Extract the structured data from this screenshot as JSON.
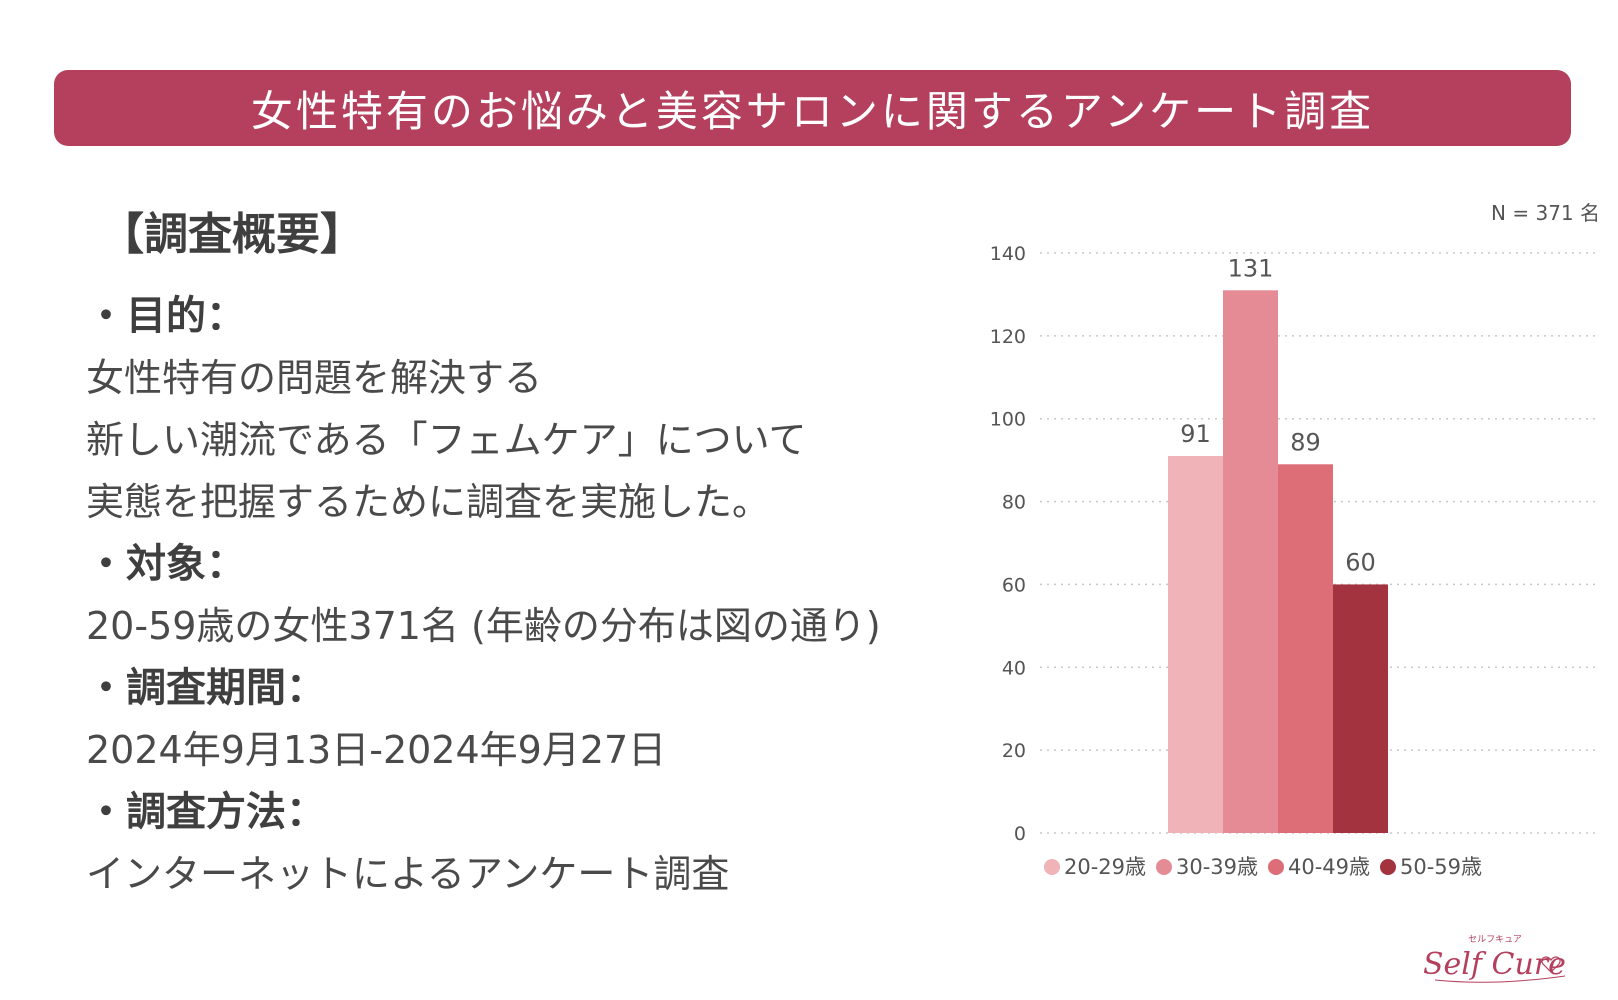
{
  "header": {
    "title": "女性特有のお悩みと美容サロンに関するアンケート調査"
  },
  "summary": {
    "heading": "【調査概要】",
    "purpose_label": "・目的：",
    "purpose_lines": [
      "女性特有の問題を解決する",
      "新しい潮流である「フェムケア」について",
      "実態を把握するために調査を実施した。"
    ],
    "target_label": "・対象：",
    "target_text": "20-59歳の女性371名 (年齢の分布は図の通り)",
    "period_label": "・調査期間：",
    "period_text": "2024年9月13日-2024年9月27日",
    "method_label": "・調査方法：",
    "method_text": "インターネットによるアンケート調査"
  },
  "chart_note": "N = 371 名",
  "chart_data": {
    "type": "bar",
    "categories": [
      "20-29歳",
      "30-39歳",
      "40-49歳",
      "50-59歳"
    ],
    "values": [
      91,
      131,
      89,
      60
    ],
    "colors": [
      "#efb3b8",
      "#e58b95",
      "#dd6d76",
      "#a3333f"
    ],
    "ylim": [
      0,
      140
    ],
    "yticks": [
      "0",
      "20",
      "40",
      "60",
      "80",
      "100",
      "120",
      "140"
    ],
    "grid": true,
    "legend": "bottom"
  },
  "logo": {
    "small_text": "セルフキュア",
    "main_text": "Self Cure"
  }
}
